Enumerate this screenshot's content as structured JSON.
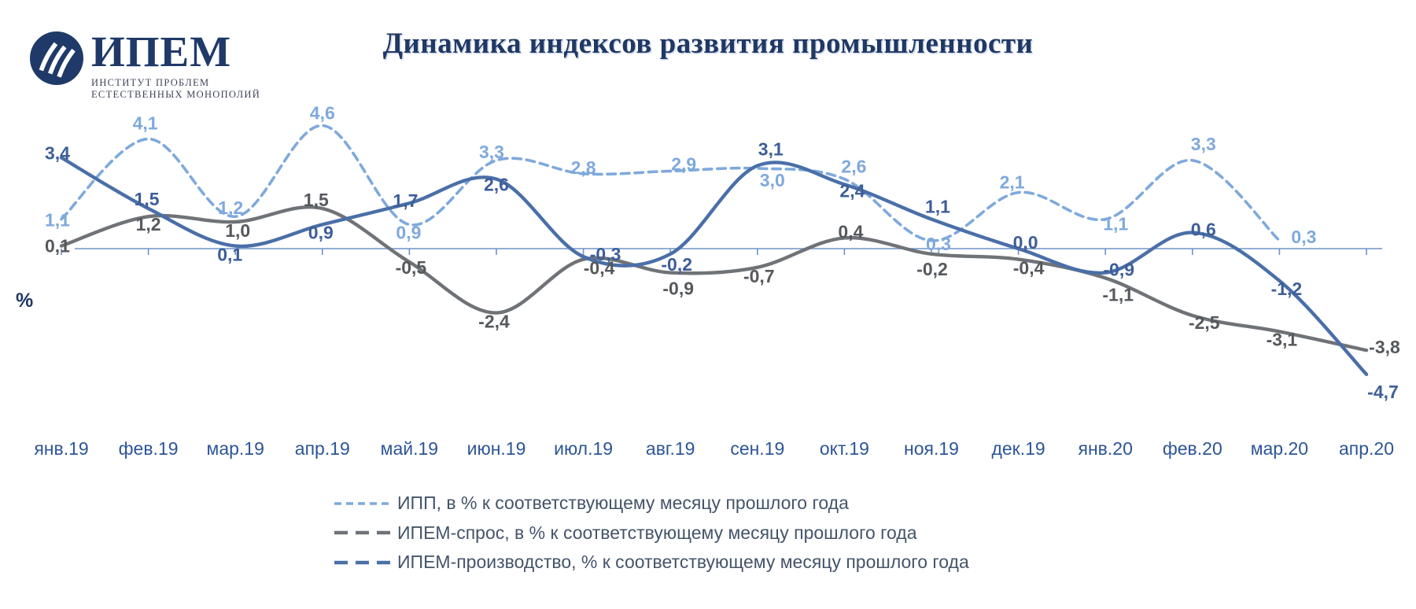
{
  "logo": {
    "name": "ИПЕМ",
    "subtitle_line1": "ИНСТИТУТ ПРОБЛЕМ",
    "subtitle_line2": "ЕСТЕСТВЕННЫХ МОНОПОЛИЙ"
  },
  "title": "Динамика индексов развития промышленности",
  "y_axis_unit": "%",
  "colors": {
    "title": "#1F3864",
    "logo": "#1F3A68",
    "logo_subtitle": "#3E4458",
    "month_label": "#2D5597",
    "legend_text": "#44546A",
    "axis": "#6E93C8",
    "ipp": "#7FA9DC",
    "demand": "#6F7378",
    "demand_label": "#55585C",
    "production": "#4A6FA8",
    "production_label": "#3D5E99"
  },
  "chart_data": {
    "type": "line",
    "title": "Динамика индексов развития промышленности",
    "xlabel": "",
    "ylabel": "%",
    "ylim": [
      -5.5,
      5.5
    ],
    "grid": false,
    "legend_position": "bottom",
    "categories": [
      "янв.19",
      "фев.19",
      "мар.19",
      "апр.19",
      "май.19",
      "июн.19",
      "июл.19",
      "авг.19",
      "сен.19",
      "окт.19",
      "ноя.19",
      "дек.19",
      "янв.20",
      "фев.20",
      "мар.20",
      "апр.20"
    ],
    "series": [
      {
        "name": "ИПП",
        "legend_label": "ИПП, в % к соответствующему месяцу прошлого года",
        "line_style": "dashed",
        "values": [
          1.1,
          4.1,
          1.2,
          4.6,
          0.9,
          3.3,
          2.8,
          2.9,
          3.0,
          2.6,
          0.3,
          2.1,
          1.1,
          3.3,
          0.3,
          null
        ],
        "point_labels": [
          "1,1",
          "4,1",
          "1,2",
          "4,6",
          "0,9",
          "3,3",
          "2,8",
          "2,9",
          "3,0",
          "2,6",
          "0,3",
          "2,1",
          "1,1",
          "3,3",
          "0,3",
          null
        ]
      },
      {
        "name": "ИПЕМ-спрос",
        "legend_label": "ИПЕМ-спрос, в % к соответствующему месяцу прошлого года",
        "line_style": "solid",
        "values": [
          0.1,
          1.2,
          1.0,
          1.5,
          -0.5,
          -2.4,
          -0.4,
          -0.9,
          -0.7,
          0.4,
          -0.2,
          -0.4,
          -1.1,
          -2.5,
          -3.1,
          -3.8
        ],
        "point_labels": [
          "0,1",
          "1,2",
          "1,0",
          "1,5",
          "-0,5",
          "-2,4",
          "-0,4",
          "-0,9",
          "-0,7",
          "0,4",
          "-0,2",
          "-0,4",
          "-1,1",
          "-2,5",
          "-3,1",
          "-3,8"
        ]
      },
      {
        "name": "ИПЕМ-производство",
        "legend_label": "ИПЕМ-производство, % к соответствующему месяцу прошлого года",
        "line_style": "solid",
        "values": [
          3.4,
          1.5,
          0.1,
          0.9,
          1.7,
          2.6,
          -0.3,
          -0.2,
          3.1,
          2.4,
          1.1,
          0.0,
          -0.9,
          0.6,
          -1.2,
          -4.7
        ],
        "point_labels": [
          "3,4",
          "1,5",
          "0,1",
          "0,9",
          "1,7",
          "2,6",
          "-0,3",
          "-0,2",
          "3,1",
          "2,4",
          "1,1",
          "0,0",
          "-0,9",
          "0,6",
          "-1,2",
          "-4,7"
        ]
      }
    ]
  }
}
